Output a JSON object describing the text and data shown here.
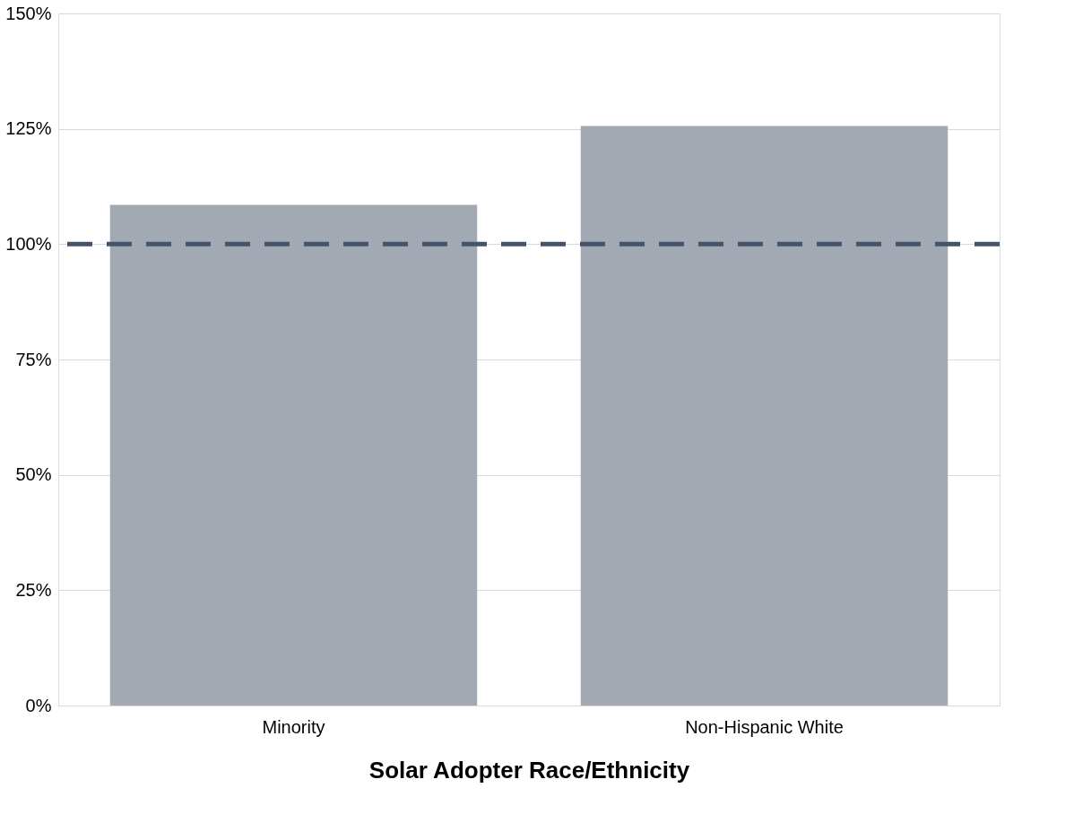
{
  "chart_data": {
    "type": "bar",
    "xlabel": "Solar Adopter Race/Ethnicity",
    "categories": [
      "Minority",
      "Non-Hispanic White"
    ],
    "values": [
      108.5,
      125.6
    ],
    "color": "#a2a9b3",
    "ylim": [
      0,
      150
    ],
    "yticks": [
      {
        "value": 0,
        "label": "0%"
      },
      {
        "value": 25,
        "label": "25%"
      },
      {
        "value": 50,
        "label": "50%"
      },
      {
        "value": 75,
        "label": "75%"
      },
      {
        "value": 100,
        "label": "100%"
      },
      {
        "value": 125,
        "label": "125%"
      },
      {
        "value": 150,
        "label": "150%"
      }
    ],
    "grid": "y",
    "ref_lines": [
      {
        "axis": "y",
        "value": 100,
        "color": "#44546a",
        "line_style": "dashed"
      }
    ]
  }
}
